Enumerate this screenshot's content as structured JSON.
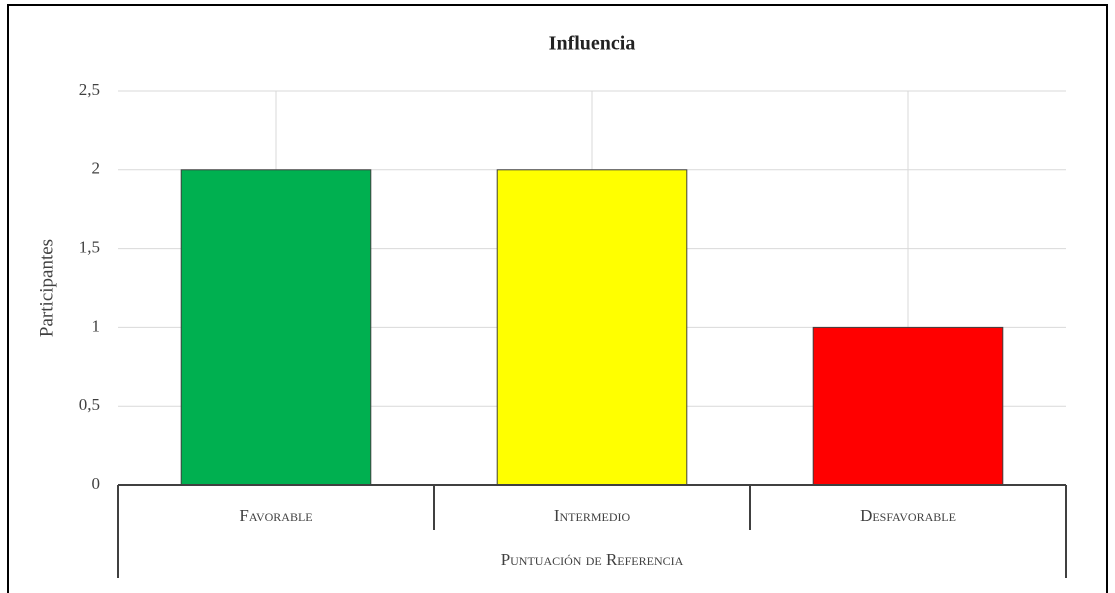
{
  "chart_data": {
    "type": "bar",
    "title": "Influencia",
    "y_label": "Participantes",
    "x_group_label": "Puntuación de Referencia",
    "categories": [
      "Favorable",
      "Intermedio",
      "Desfavorable"
    ],
    "values": [
      2,
      2,
      1
    ],
    "colors": [
      "#00b050",
      "#ffff00",
      "#ff0000"
    ],
    "ylim": [
      0,
      2.5
    ],
    "yticks": [
      0,
      {
        "value": 0.5,
        "label": "0,5"
      },
      1,
      {
        "value": 1.5,
        "label": "1,5"
      },
      2,
      {
        "value": 2.5,
        "label": "2,5"
      }
    ],
    "grid": true
  }
}
